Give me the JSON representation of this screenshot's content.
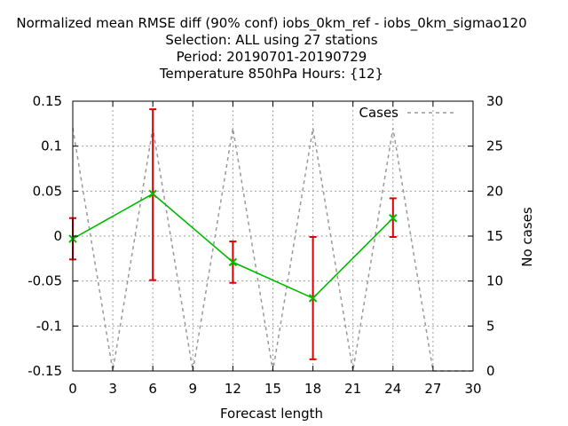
{
  "chart_data": {
    "type": "line",
    "title_lines": [
      "Normalized mean RMSE diff (90% conf) iobs_0km_ref - iobs_0km_sigmao120",
      "Selection: ALL using    27 stations",
      "Period: 20190701-20190729",
      "Temperature 850hPa   Hours: {12}"
    ],
    "xlabel": "Forecast length",
    "ylabel": "",
    "y2label": "No cases",
    "xlim": [
      0,
      30
    ],
    "ylim": [
      -0.15,
      0.15
    ],
    "y2lim": [
      0,
      30
    ],
    "xticks": [
      "0",
      "3",
      "6",
      "9",
      "12",
      "15",
      "18",
      "21",
      "24",
      "27",
      "30"
    ],
    "yticks": [
      "0.15",
      "0.1",
      "0.05",
      "0",
      "-0.05",
      "-0.1",
      "-0.15"
    ],
    "y2ticks": [
      "30",
      "25",
      "20",
      "15",
      "10",
      "5",
      "0"
    ],
    "grid": true,
    "legend_position": "top-right",
    "series": [
      {
        "name": "",
        "axis": "left",
        "style": "line-points-errorbars",
        "color": "#00bb00",
        "errorbar_color": "#dd0000",
        "x": [
          0,
          6,
          12,
          18,
          24
        ],
        "y": [
          -0.003,
          0.047,
          -0.029,
          -0.069,
          0.02
        ],
        "err_low": [
          -0.026,
          -0.049,
          -0.052,
          -0.137,
          -0.001
        ],
        "err_high": [
          0.02,
          0.141,
          -0.006,
          -0.001,
          0.042
        ]
      },
      {
        "name": "Cases",
        "axis": "right",
        "style": "dashed-line",
        "color": "#999999",
        "x": [
          0,
          3,
          6,
          9,
          12,
          15,
          18,
          21,
          24,
          27,
          30
        ],
        "y": [
          27,
          0,
          27,
          0,
          27,
          0,
          27,
          0,
          27,
          0,
          0
        ]
      }
    ]
  }
}
